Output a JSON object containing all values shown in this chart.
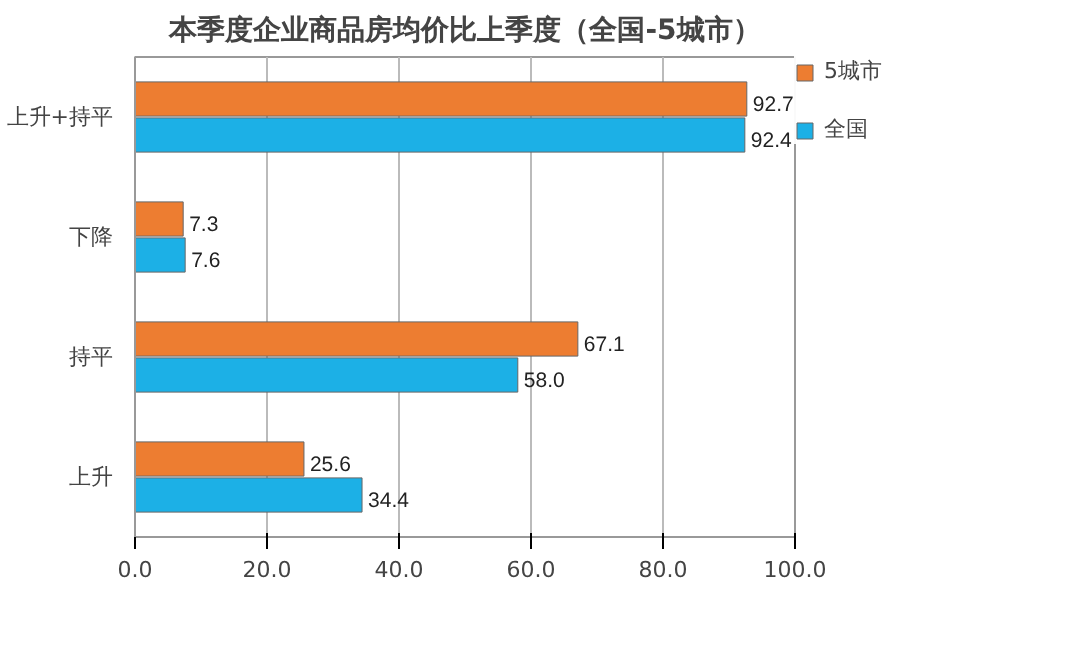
{
  "chart_data": {
    "type": "bar",
    "orientation": "horizontal",
    "title": "本季度企业商品房均价比上季度（全国-5城市）",
    "categories": [
      "上升+持平",
      "下降",
      "持平",
      "上升"
    ],
    "series": [
      {
        "name": "5城市",
        "color": "#ed7d31",
        "values": [
          92.7,
          7.3,
          67.1,
          25.6
        ],
        "value_labels": [
          "92.7",
          "7.3",
          "67.1",
          "25.6"
        ]
      },
      {
        "name": "全国",
        "color": "#1cb0e6",
        "values": [
          92.4,
          7.6,
          58.0,
          34.4
        ],
        "value_labels": [
          "92.4",
          "7.6",
          "58.0",
          "34.4"
        ]
      }
    ],
    "xlim": [
      0,
      100
    ],
    "xticks": [
      {
        "value": 0,
        "label": "0.0"
      },
      {
        "value": 20,
        "label": "20.0"
      },
      {
        "value": 40,
        "label": "40.0"
      },
      {
        "value": 60,
        "label": "60.0"
      },
      {
        "value": 80,
        "label": "80.0"
      },
      {
        "value": 100,
        "label": "100.0"
      }
    ],
    "grid": "x",
    "legend": "right"
  }
}
